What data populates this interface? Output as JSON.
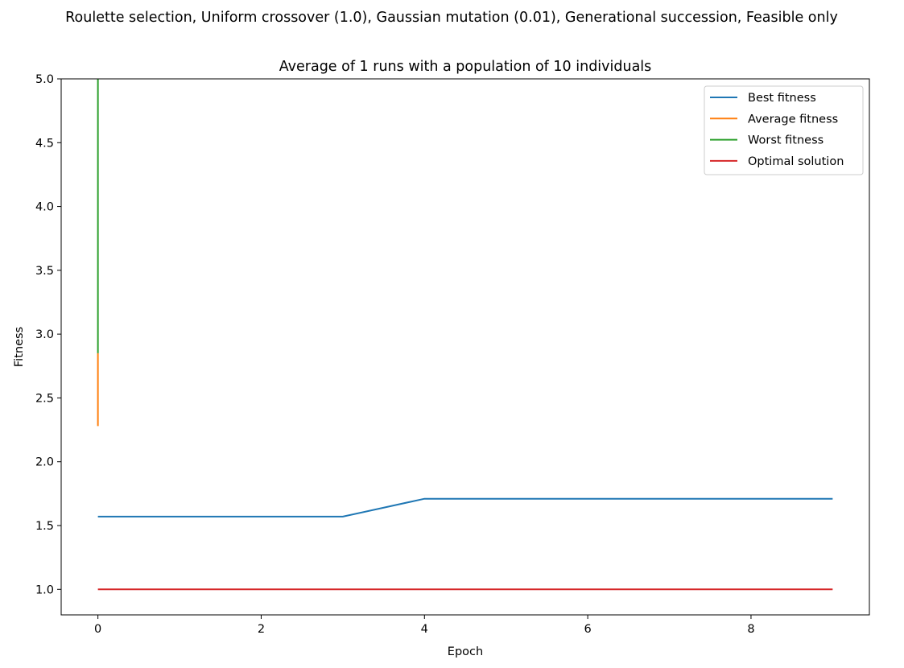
{
  "suptitle": "Roulette selection, Uniform crossover (1.0), Gaussian mutation (0.01), Generational succession, Feasible only",
  "chart_data": {
    "type": "line",
    "title": "Average of 1 runs with a population of 10 individuals",
    "xlabel": "Epoch",
    "ylabel": "Fitness",
    "xlim": [
      -0.45,
      9.45
    ],
    "ylim": [
      0.8,
      5.0
    ],
    "xticks": [
      0,
      2,
      4,
      6,
      8
    ],
    "yticks": [
      1.0,
      1.5,
      2.0,
      2.5,
      3.0,
      3.5,
      4.0,
      4.5,
      5.0
    ],
    "xtick_labels": [
      "0",
      "2",
      "4",
      "6",
      "8"
    ],
    "ytick_labels": [
      "1.0",
      "1.5",
      "2.0",
      "2.5",
      "3.0",
      "3.5",
      "4.0",
      "4.5",
      "5.0"
    ],
    "grid": false,
    "legend_position": "upper right",
    "x": [
      0,
      1,
      2,
      3,
      4,
      5,
      6,
      7,
      8,
      9
    ],
    "series": [
      {
        "name": "Best fitness",
        "color": "#1f77b4",
        "values": [
          1.57,
          1.57,
          1.57,
          1.57,
          1.71,
          1.71,
          1.71,
          1.71,
          1.71,
          1.71
        ]
      },
      {
        "name": "Average fitness",
        "color": "#ff7f0e",
        "values": [
          2.28,
          2.85,
          null,
          null,
          null,
          null,
          null,
          null,
          null,
          null
        ]
      },
      {
        "name": "Worst fitness",
        "color": "#2ca02c",
        "values": [
          2.85,
          5.0,
          null,
          null,
          null,
          null,
          null,
          null,
          null,
          null
        ]
      },
      {
        "name": "Optimal solution",
        "color": "#d62728",
        "values": [
          1.0,
          1.0,
          1.0,
          1.0,
          1.0,
          1.0,
          1.0,
          1.0,
          1.0,
          1.0
        ]
      }
    ],
    "segments_note_free": true,
    "vertical_segments": [
      {
        "series": "Average fitness",
        "x": 0,
        "y": [
          2.28,
          2.85
        ]
      },
      {
        "series": "Worst fitness",
        "x": 0,
        "y": [
          2.85,
          5.0
        ]
      }
    ]
  }
}
